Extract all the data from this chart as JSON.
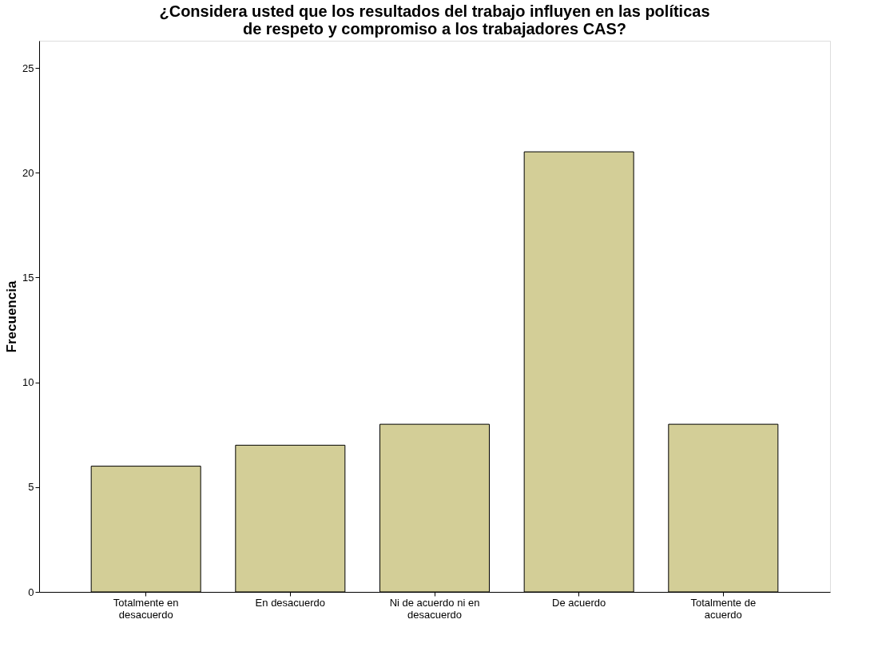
{
  "chart_data": {
    "type": "bar",
    "title": "¿Considera usted que los resultados del trabajo influyen en las políticas de respeto y compromiso a los trabajadores CAS?",
    "ylabel": "Frecuencia",
    "categories": [
      "Totalmente en desacuerdo",
      "En desacuerdo",
      "Ni de acuerdo ni en desacuerdo",
      "De acuerdo",
      "Totalmente de acuerdo"
    ],
    "values": [
      6,
      7,
      8,
      21,
      8
    ],
    "color": "#d3ce97",
    "ylim": [
      0,
      26.3
    ],
    "yticks": [
      0,
      5,
      10,
      15,
      20,
      25
    ],
    "grid": false
  }
}
